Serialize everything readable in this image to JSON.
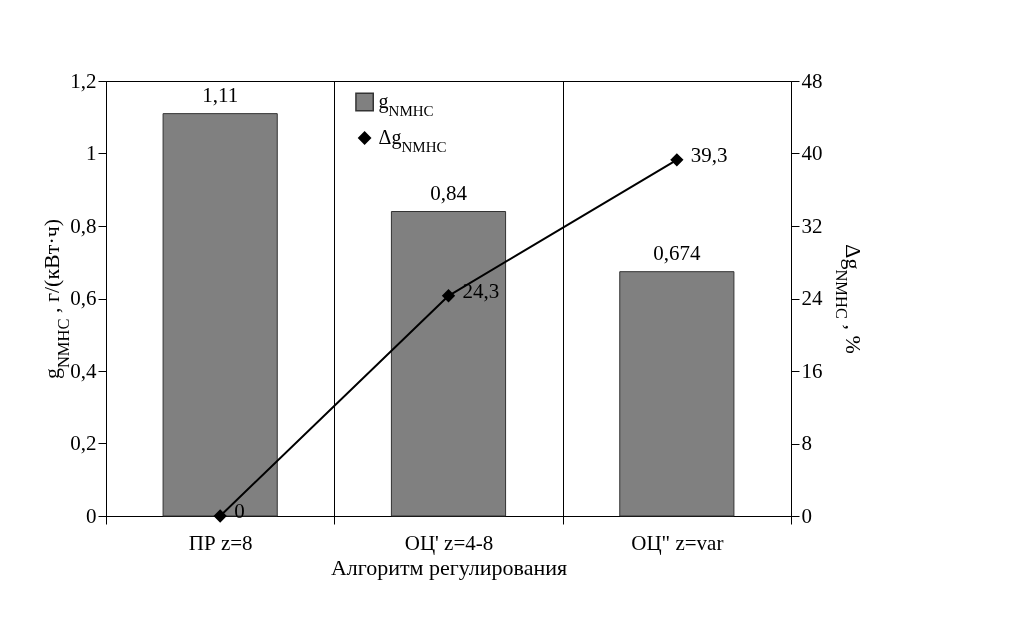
{
  "chart_data": {
    "type": "bar",
    "categories": [
      "ПР z=8",
      "ОЦ' z=4-8",
      "ОЦ\" z=var"
    ],
    "xlabel": "Алгоритм регулирования",
    "ylabel": "g$_{NMHC}$ , г/(кВт·ч)",
    "y2label": "Δg$_{NMHC}$ , %",
    "series": [
      {
        "name": "g$_{NMHC}$",
        "color": "#808080",
        "values": [
          1.11,
          0.84,
          0.674
        ],
        "value_labels": [
          "1,11",
          "0,84",
          "0,674"
        ]
      },
      {
        "name": "Δg$_{NMHC}$",
        "type": "line",
        "axis": "y2",
        "color": "#000000",
        "values": [
          0,
          24.3,
          39.3
        ],
        "value_labels": [
          "0",
          "24,3",
          "39,3"
        ]
      }
    ],
    "ylim": [
      0,
      1.2
    ],
    "yticks": [
      0,
      {
        "value": 0.2,
        "label": "0,2"
      },
      {
        "value": 0.4,
        "label": "0,4"
      },
      {
        "value": 0.6,
        "label": "0,6"
      },
      {
        "value": 0.8,
        "label": "0,8"
      },
      1,
      {
        "value": 1.2,
        "label": "1,2"
      }
    ],
    "y2lim": [
      0,
      48
    ],
    "y2ticks": [
      0,
      8,
      16,
      24,
      32,
      40,
      48
    ],
    "grid": "x",
    "legend": "top",
    "marker": "diamond"
  }
}
